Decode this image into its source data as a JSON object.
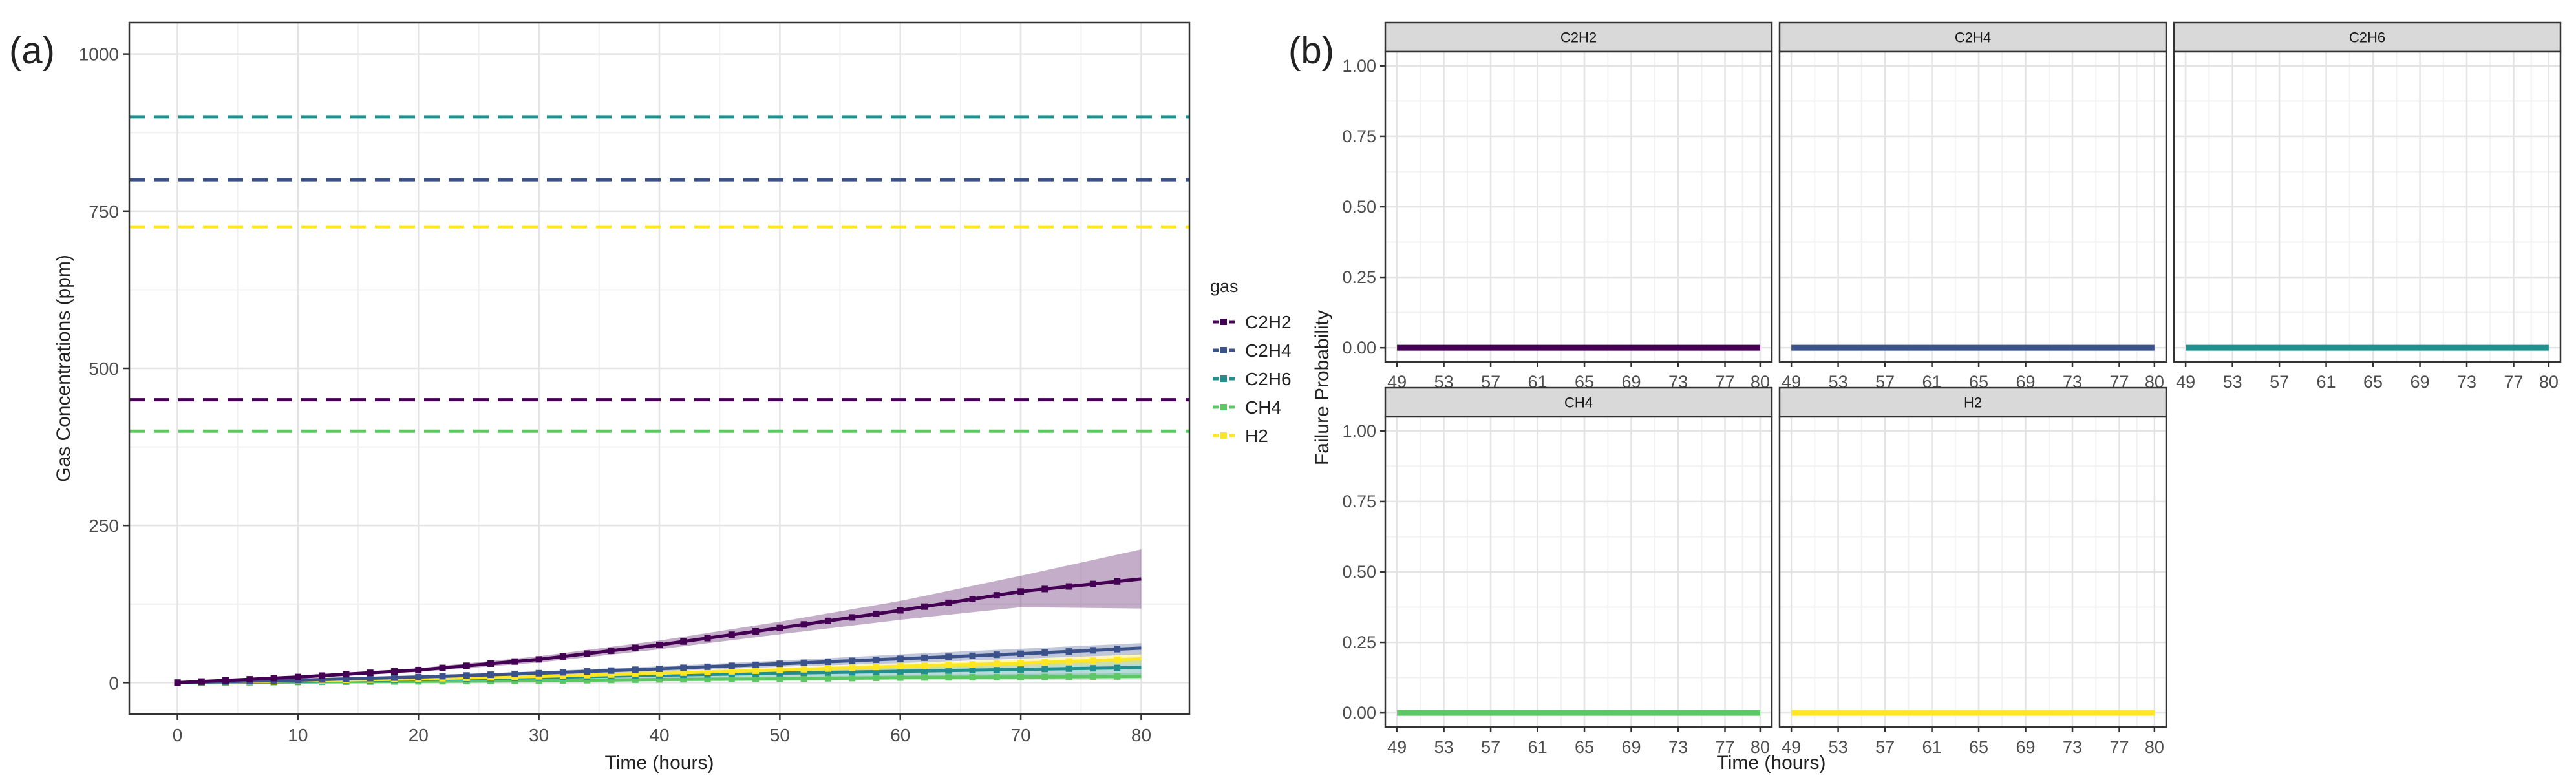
{
  "panel_a": {
    "label": "(a)",
    "legend": {
      "title": "gas",
      "items": [
        {
          "name": "C2H2",
          "color": "#440154"
        },
        {
          "name": "C2H4",
          "color": "#3B528B"
        },
        {
          "name": "C2H6",
          "color": "#21908C"
        },
        {
          "name": "CH4",
          "color": "#5DC863"
        },
        {
          "name": "H2",
          "color": "#FDE725"
        }
      ]
    }
  },
  "panel_b": {
    "label": "(b)",
    "facet_titles": [
      "C2H2",
      "C2H4",
      "C2H6",
      "CH4",
      "H2"
    ]
  },
  "chart_data": [
    {
      "type": "line",
      "title": "",
      "xlabel": "Time (hours)",
      "ylabel": "Gas Concentrations (ppm)",
      "xlim": [
        -4,
        84
      ],
      "ylim": [
        -50,
        1050
      ],
      "xticks": [
        0,
        10,
        20,
        30,
        40,
        50,
        60,
        70,
        80
      ],
      "yticks": [
        0,
        250,
        500,
        750,
        1000
      ],
      "grid": true,
      "legend_position": "right",
      "thresholds": [
        {
          "gas": "C2H6",
          "value": 900,
          "color": "#21908C"
        },
        {
          "gas": "C2H4",
          "value": 800,
          "color": "#3B528B"
        },
        {
          "gas": "H2",
          "value": 725,
          "color": "#FDE725"
        },
        {
          "gas": "C2H2",
          "value": 450,
          "color": "#440154"
        },
        {
          "gas": "CH4",
          "value": 400,
          "color": "#5DC863"
        }
      ],
      "x": [
        0,
        10,
        20,
        30,
        40,
        50,
        60,
        70,
        80
      ],
      "series": [
        {
          "name": "C2H2",
          "color": "#440154",
          "values": [
            0,
            9,
            20,
            37,
            60,
            87,
            115,
            145,
            165
          ],
          "band_lower": [
            0,
            7,
            17,
            32,
            53,
            77,
            100,
            120,
            118
          ],
          "band_upper": [
            1,
            11,
            23,
            42,
            67,
            97,
            130,
            170,
            212
          ]
        },
        {
          "name": "C2H4",
          "color": "#3B528B",
          "values": [
            0,
            4,
            9,
            15,
            22,
            30,
            38,
            46,
            55
          ],
          "band_lower": [
            0,
            3,
            7,
            12,
            18,
            25,
            31,
            38,
            45
          ],
          "band_upper": [
            1,
            5,
            11,
            18,
            26,
            35,
            45,
            54,
            63
          ]
        },
        {
          "name": "C2H6",
          "color": "#21908C",
          "values": [
            0,
            2,
            5,
            8,
            12,
            15,
            18,
            21,
            24
          ],
          "band_lower": [
            0,
            1,
            3,
            5,
            7,
            9,
            10,
            11,
            12
          ],
          "band_upper": [
            1,
            3,
            7,
            11,
            17,
            21,
            26,
            31,
            36
          ]
        },
        {
          "name": "CH4",
          "color": "#5DC863",
          "values": [
            0,
            1,
            2,
            3,
            5,
            6,
            8,
            9,
            10
          ],
          "band_lower": [
            0,
            0,
            1,
            1,
            2,
            3,
            4,
            4,
            5
          ],
          "band_upper": [
            1,
            2,
            3,
            5,
            8,
            9,
            12,
            14,
            15
          ]
        },
        {
          "name": "H2",
          "color": "#FDE725",
          "values": [
            0,
            3,
            6,
            10,
            15,
            20,
            26,
            31,
            38
          ],
          "band_lower": [
            0,
            2,
            4,
            8,
            12,
            16,
            21,
            25,
            30
          ],
          "band_upper": [
            1,
            4,
            8,
            12,
            18,
            24,
            31,
            37,
            46
          ]
        }
      ]
    },
    {
      "type": "line",
      "title": "",
      "xlabel": "Time (hours)",
      "ylabel": "Failure Probability",
      "xlim": [
        48,
        81
      ],
      "ylim": [
        -0.05,
        1.05
      ],
      "xticks": [
        49,
        53,
        57,
        61,
        65,
        69,
        73,
        77,
        80
      ],
      "yticks": [
        0.0,
        0.25,
        0.5,
        0.75,
        1.0
      ],
      "ytick_labels": [
        "0.00",
        "0.25",
        "0.50",
        "0.75",
        "1.00"
      ],
      "grid": true,
      "facets": [
        {
          "title": "C2H2",
          "color": "#440154",
          "x": [
            49,
            80
          ],
          "y": [
            0.0,
            0.0
          ]
        },
        {
          "title": "C2H4",
          "color": "#3B528B",
          "x": [
            49,
            80
          ],
          "y": [
            0.0,
            0.0
          ]
        },
        {
          "title": "C2H6",
          "color": "#21908C",
          "x": [
            49,
            80
          ],
          "y": [
            0.0,
            0.0
          ]
        },
        {
          "title": "CH4",
          "color": "#5DC863",
          "x": [
            49,
            80
          ],
          "y": [
            0.0,
            0.0
          ]
        },
        {
          "title": "H2",
          "color": "#FDE725",
          "x": [
            49,
            80
          ],
          "y": [
            0.0,
            0.0
          ]
        }
      ]
    }
  ]
}
